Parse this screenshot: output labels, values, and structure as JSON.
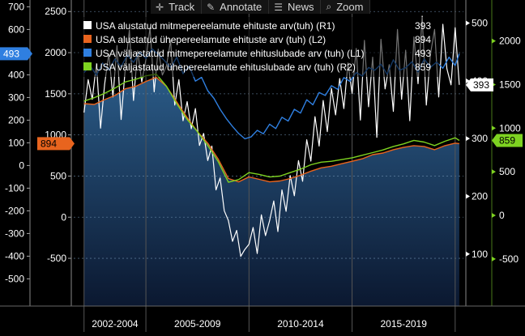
{
  "toolbar": {
    "track_label": "Track",
    "annotate_label": "Annotate",
    "news_label": "News",
    "zoom_label": "Zoom",
    "track_icon": "crosshair-icon",
    "annotate_icon": "pencil-icon",
    "news_icon": "newspaper-icon",
    "zoom_icon": "magnifier-icon"
  },
  "colors": {
    "background": "#000000",
    "plot_top": "#2a5a86",
    "plot_bottom": "#0b1830",
    "white_series": "#ffffff",
    "orange_series": "#e8641e",
    "blue_series": "#2f7fe0",
    "green_series": "#7ed321"
  },
  "chart_data": {
    "type": "line",
    "x_range": [
      2001.5,
      2020.4
    ],
    "x_tick_labels": [
      "2002-2004",
      "2005-2009",
      "2010-2014",
      "2015-2019"
    ],
    "x_tick_positions": [
      2002.0,
      2005.0,
      2010.0,
      2015.0,
      2020.0
    ],
    "x_label_centers": [
      2003.5,
      2007.5,
      2012.5,
      2017.5
    ],
    "axes": {
      "L1": {
        "side": "left",
        "color": "#ffffff",
        "range": [
          -620,
          730
        ],
        "ticks": [
          -500,
          -400,
          -300,
          -200,
          -100,
          0,
          100,
          200,
          300,
          400,
          500,
          600,
          700
        ]
      },
      "L2": {
        "side": "left",
        "color": "#ffffff",
        "range": [
          -1080,
          2640
        ],
        "ticks": [
          -500,
          0,
          500,
          1000,
          1500,
          2000,
          2500
        ]
      },
      "R1": {
        "side": "right",
        "color": "#ffffff",
        "range": [
          10,
          540
        ],
        "ticks": [
          100,
          200,
          300,
          400,
          500
        ]
      },
      "R2": {
        "side": "right",
        "color": "#7ed321",
        "range": [
          -1040,
          2470
        ],
        "ticks": [
          -500,
          0,
          500,
          1000,
          1500,
          2000
        ]
      }
    },
    "series": [
      {
        "name": "USA alustatud mitmepereelamute ehituste arv(tuh) (R1)",
        "axis": "R1",
        "color": "#ffffff",
        "last_value": 393,
        "x": [
          2002.0,
          2002.2,
          2002.4,
          2002.6,
          2002.8,
          2003.0,
          2003.2,
          2003.4,
          2003.6,
          2003.8,
          2004.0,
          2004.2,
          2004.4,
          2004.6,
          2004.8,
          2005.0,
          2005.2,
          2005.4,
          2005.6,
          2005.8,
          2006.0,
          2006.2,
          2006.4,
          2006.6,
          2006.8,
          2007.0,
          2007.2,
          2007.4,
          2007.6,
          2007.8,
          2008.0,
          2008.2,
          2008.4,
          2008.6,
          2008.8,
          2009.0,
          2009.2,
          2009.4,
          2009.6,
          2009.8,
          2010.0,
          2010.2,
          2010.4,
          2010.6,
          2010.8,
          2011.0,
          2011.2,
          2011.4,
          2011.6,
          2011.8,
          2012.0,
          2012.2,
          2012.4,
          2012.6,
          2012.8,
          2013.0,
          2013.2,
          2013.4,
          2013.6,
          2013.8,
          2014.0,
          2014.2,
          2014.4,
          2014.6,
          2014.8,
          2015.0,
          2015.2,
          2015.4,
          2015.6,
          2015.8,
          2016.0,
          2016.2,
          2016.4,
          2016.6,
          2016.8,
          2017.0,
          2017.2,
          2017.4,
          2017.6,
          2017.8,
          2018.0,
          2018.2,
          2018.4,
          2018.6,
          2018.8,
          2019.0,
          2019.2,
          2019.4,
          2019.6,
          2019.8,
          2020.0,
          2020.2
        ],
        "values": [
          345,
          402,
          368,
          430,
          318,
          395,
          447,
          372,
          461,
          333,
          421,
          488,
          366,
          452,
          398,
          437,
          492,
          381,
          455,
          410,
          426,
          470,
          358,
          402,
          331,
          364,
          317,
          352,
          288,
          309,
          262,
          287,
          211,
          232,
          175,
          158,
          122,
          141,
          96,
          108,
          117,
          146,
          101,
          168,
          132,
          158,
          192,
          139,
          211,
          174,
          236,
          201,
          262,
          226,
          298,
          261,
          338,
          287,
          366,
          312,
          387,
          341,
          404,
          352,
          431,
          378,
          456,
          332,
          470,
          355,
          441,
          302,
          472,
          386,
          428,
          347,
          489,
          368,
          453,
          331,
          476,
          395,
          512,
          358,
          446,
          489,
          372,
          498,
          421,
          393,
          492,
          393
        ]
      },
      {
        "name": "USA alustatud ühepereelamute ehituste arv (tuh) (L2)",
        "axis": "L2",
        "color": "#e8641e",
        "last_value": 894,
        "x": [
          2002.0,
          2002.5,
          2003.0,
          2003.5,
          2004.0,
          2004.5,
          2005.0,
          2005.5,
          2006.0,
          2006.5,
          2007.0,
          2007.5,
          2008.0,
          2008.5,
          2009.0,
          2009.5,
          2010.0,
          2010.5,
          2011.0,
          2011.5,
          2012.0,
          2012.5,
          2013.0,
          2013.5,
          2014.0,
          2014.5,
          2015.0,
          2015.5,
          2016.0,
          2016.5,
          2017.0,
          2017.5,
          2018.0,
          2018.5,
          2019.0,
          2019.5,
          2020.0,
          2020.2
        ],
        "values": [
          1380,
          1370,
          1430,
          1480,
          1560,
          1590,
          1650,
          1700,
          1590,
          1400,
          1210,
          1040,
          900,
          710,
          470,
          430,
          490,
          460,
          430,
          440,
          470,
          510,
          560,
          600,
          620,
          650,
          680,
          710,
          760,
          780,
          820,
          850,
          870,
          860,
          820,
          870,
          900,
          894
        ]
      },
      {
        "name": "USA väljastatud mitmepereelamute ehituslubade arv (tuh) (L1)",
        "axis": "L1",
        "color": "#2f7fe0",
        "last_value": 493,
        "x": [
          2002.0,
          2002.3,
          2002.6,
          2002.9,
          2003.2,
          2003.5,
          2003.8,
          2004.1,
          2004.4,
          2004.7,
          2005.0,
          2005.3,
          2005.6,
          2005.9,
          2006.2,
          2006.5,
          2006.8,
          2007.1,
          2007.4,
          2007.7,
          2008.0,
          2008.3,
          2008.6,
          2008.9,
          2009.2,
          2009.5,
          2009.8,
          2010.1,
          2010.4,
          2010.7,
          2011.0,
          2011.3,
          2011.6,
          2011.9,
          2012.2,
          2012.5,
          2012.8,
          2013.1,
          2013.4,
          2013.7,
          2014.0,
          2014.3,
          2014.6,
          2014.9,
          2015.2,
          2015.5,
          2015.8,
          2016.1,
          2016.4,
          2016.7,
          2017.0,
          2017.3,
          2017.6,
          2017.9,
          2018.2,
          2018.5,
          2018.8,
          2019.1,
          2019.4,
          2019.7,
          2020.0,
          2020.2
        ],
        "values": [
          410,
          440,
          398,
          452,
          421,
          470,
          436,
          488,
          455,
          501,
          472,
          515,
          490,
          463,
          432,
          478,
          405,
          438,
          372,
          389,
          330,
          296,
          248,
          207,
          172,
          141,
          118,
          126,
          155,
          140,
          182,
          163,
          213,
          196,
          248,
          231,
          290,
          268,
          322,
          309,
          352,
          336,
          388,
          371,
          410,
          395,
          432,
          420,
          447,
          402,
          466,
          420,
          431,
          458,
          412,
          470,
          433,
          456,
          429,
          478,
          441,
          493
        ]
      },
      {
        "name": "USA väljastatud ühepereelamute ehituslubade arv (tuh) (R2)",
        "axis": "R2",
        "color": "#7ed321",
        "last_value": 859,
        "x": [
          2002.0,
          2002.5,
          2003.0,
          2003.5,
          2004.0,
          2004.5,
          2005.0,
          2005.5,
          2006.0,
          2006.5,
          2007.0,
          2007.5,
          2008.0,
          2008.5,
          2009.0,
          2009.5,
          2010.0,
          2010.5,
          2011.0,
          2011.5,
          2012.0,
          2012.5,
          2013.0,
          2013.5,
          2014.0,
          2014.5,
          2015.0,
          2015.5,
          2016.0,
          2016.5,
          2017.0,
          2017.5,
          2018.0,
          2018.5,
          2019.0,
          2019.5,
          2020.0,
          2020.2
        ],
        "values": [
          1310,
          1350,
          1400,
          1460,
          1530,
          1560,
          1600,
          1620,
          1480,
          1280,
          1100,
          960,
          800,
          620,
          380,
          410,
          490,
          470,
          440,
          450,
          490,
          530,
          580,
          610,
          620,
          640,
          660,
          690,
          720,
          750,
          790,
          820,
          860,
          840,
          800,
          850,
          890,
          859
        ]
      }
    ],
    "legend": {
      "placement": "top-left"
    },
    "grid": true
  }
}
